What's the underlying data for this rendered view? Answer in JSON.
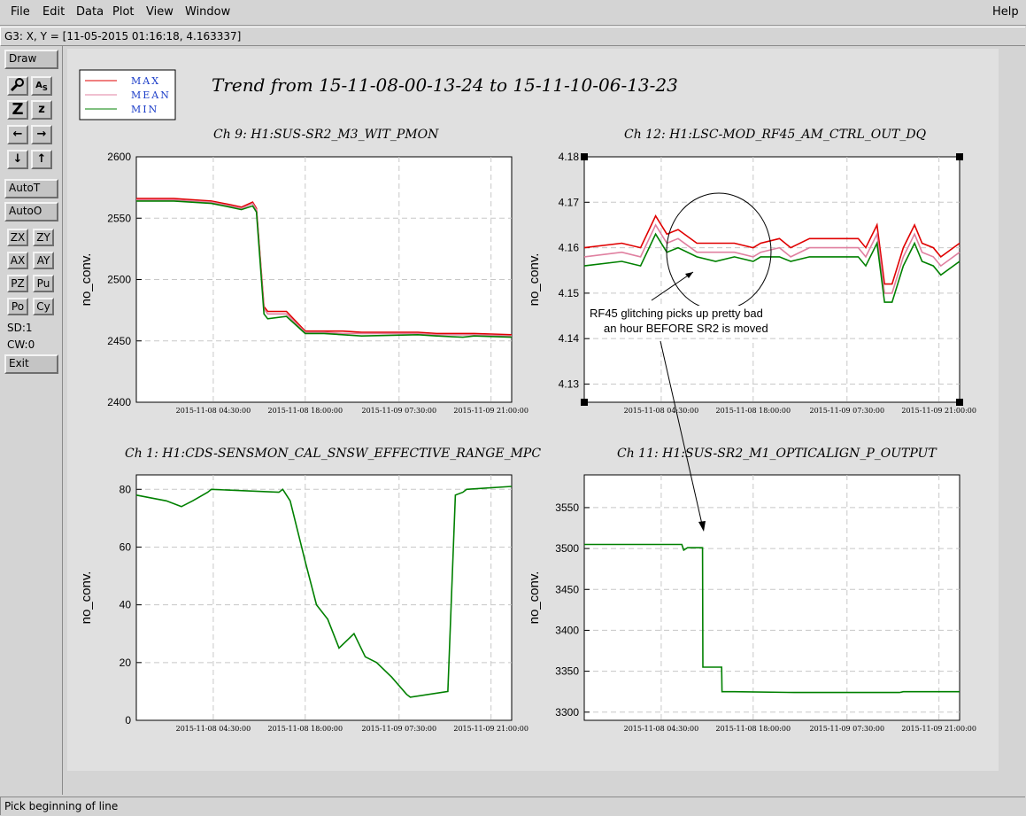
{
  "menu": {
    "file": "File",
    "edit": "Edit",
    "data": "Data",
    "plot": "Plot",
    "view": "View",
    "window": "Window",
    "help": "Help"
  },
  "coord_readout": "G3: X, Y = [11-05-2015 01:16:18, 4.163337]",
  "toolbar": {
    "draw": "Draw",
    "autot": "AutoT",
    "autoo": "AutoO",
    "zx": "ZX",
    "zy": "ZY",
    "ax": "AX",
    "ay": "AY",
    "pz": "PZ",
    "pu": "Pu",
    "po": "Po",
    "cy": "Cy",
    "sd": "SD:1",
    "cw": "CW:0",
    "exit": "Exit"
  },
  "status": "Pick beginning of line",
  "legend": {
    "max": "MAX",
    "mean": "MEAN",
    "min": "MIN"
  },
  "trend_title": "Trend from 15-11-08-00-13-24 to 15-11-10-06-13-23",
  "annotation": {
    "line1": "RF45 glitching picks up pretty bad",
    "line2": "an hour BEFORE SR2 is moved"
  },
  "colors": {
    "max": "#e00000",
    "mean": "#e080a0",
    "min": "#008000",
    "plot_bg": "#ffffff",
    "canvas_bg": "#e0e0e0"
  },
  "xticks": [
    "2015-11-08 04:30:00",
    "2015-11-08 18:00:00",
    "2015-11-09 07:30:00",
    "2015-11-09 21:00:00"
  ],
  "chart_data": [
    {
      "type": "line",
      "title": "Ch 9: H1:SUS-SR2_M3_WIT_PMON",
      "ylabel": "no_conv.",
      "ylim": [
        2400,
        2600
      ],
      "yticks": [
        "2400",
        "2450",
        "2500",
        "2550",
        "2600"
      ],
      "grid": true,
      "x": [
        0,
        10,
        20,
        25,
        28,
        31,
        32,
        34,
        35,
        40,
        45,
        50,
        55,
        60,
        75,
        80,
        87,
        90,
        100
      ],
      "series": [
        {
          "name": "MAX",
          "values": [
            2566,
            2566,
            2564,
            2561,
            2559,
            2563,
            2558,
            2478,
            2474,
            2474,
            2458,
            2458,
            2458,
            2457,
            2457,
            2456,
            2456,
            2456,
            2455
          ]
        },
        {
          "name": "MEAN",
          "values": [
            2565,
            2565,
            2563,
            2560,
            2558,
            2562,
            2557,
            2476,
            2472,
            2472,
            2457,
            2457,
            2456,
            2456,
            2456,
            2455,
            2455,
            2455,
            2454
          ]
        },
        {
          "name": "MIN",
          "values": [
            2564,
            2564,
            2562,
            2559,
            2557,
            2560,
            2555,
            2472,
            2468,
            2470,
            2456,
            2456,
            2455,
            2454,
            2455,
            2454,
            2453,
            2454,
            2453
          ]
        }
      ]
    },
    {
      "type": "line",
      "title": "Ch 12: H1:LSC-MOD_RF45_AM_CTRL_OUT_DQ",
      "ylabel": "no_conv.",
      "ylim": [
        4.126,
        4.18
      ],
      "yticks": [
        "4.13",
        "4.14",
        "4.15",
        "4.16",
        "4.17",
        "4.18"
      ],
      "grid": true,
      "x": [
        0,
        10,
        15,
        19,
        22,
        25,
        30,
        35,
        40,
        45,
        47,
        52,
        55,
        60,
        65,
        70,
        73,
        75,
        78,
        80,
        82,
        85,
        88,
        90,
        93,
        95,
        100
      ],
      "series": [
        {
          "name": "MAX",
          "values": [
            4.16,
            4.161,
            4.16,
            4.167,
            4.163,
            4.164,
            4.161,
            4.161,
            4.161,
            4.16,
            4.161,
            4.162,
            4.16,
            4.162,
            4.162,
            4.162,
            4.162,
            4.16,
            4.165,
            4.152,
            4.152,
            4.16,
            4.165,
            4.161,
            4.16,
            4.158,
            4.161
          ]
        },
        {
          "name": "MEAN",
          "values": [
            4.158,
            4.159,
            4.158,
            4.165,
            4.161,
            4.162,
            4.159,
            4.159,
            4.159,
            4.158,
            4.159,
            4.16,
            4.158,
            4.16,
            4.16,
            4.16,
            4.16,
            4.158,
            4.163,
            4.15,
            4.15,
            4.158,
            4.163,
            4.159,
            4.158,
            4.156,
            4.159
          ]
        },
        {
          "name": "MIN",
          "values": [
            4.156,
            4.157,
            4.156,
            4.163,
            4.159,
            4.16,
            4.158,
            4.157,
            4.158,
            4.157,
            4.158,
            4.158,
            4.157,
            4.158,
            4.158,
            4.158,
            4.158,
            4.156,
            4.161,
            4.148,
            4.148,
            4.156,
            4.161,
            4.157,
            4.156,
            4.154,
            4.157
          ]
        }
      ]
    },
    {
      "type": "line",
      "title": "Ch 1: H1:CDS-SENSMON_CAL_SNSW_EFFECTIVE_RANGE_MPC",
      "ylabel": "no_conv.",
      "ylim": [
        0,
        85
      ],
      "yticks": [
        "0",
        "20",
        "40",
        "60",
        "80"
      ],
      "grid": true,
      "x": [
        0,
        8,
        12,
        15,
        19,
        20,
        38,
        39,
        41,
        45,
        48,
        51,
        54,
        58,
        61,
        64,
        68,
        72,
        73,
        83,
        85,
        87,
        88,
        100
      ],
      "series": [
        {
          "name": "MIN",
          "values": [
            78,
            76,
            74,
            76,
            79,
            80,
            79,
            80,
            76,
            55,
            40,
            35,
            25,
            30,
            22,
            20,
            15,
            9,
            8,
            10,
            78,
            79,
            80,
            81
          ]
        }
      ]
    },
    {
      "type": "line",
      "title": "Ch 11: H1:SUS-SR2_M1_OPTICALIGN_P_OUTPUT",
      "ylabel": "no_conv.",
      "ylim": [
        3290,
        3590
      ],
      "yticks": [
        "3300",
        "3350",
        "3400",
        "3450",
        "3500",
        "3550"
      ],
      "grid": true,
      "x": [
        0,
        26,
        26.5,
        27.5,
        31.5,
        31.6,
        32,
        36.6,
        36.7,
        40,
        56,
        84,
        85,
        100
      ],
      "series": [
        {
          "name": "MIN",
          "values": [
            3505,
            3505,
            3498,
            3501,
            3501,
            3355,
            3355,
            3355,
            3325,
            3325,
            3324,
            3324,
            3325,
            3325
          ]
        }
      ]
    }
  ]
}
